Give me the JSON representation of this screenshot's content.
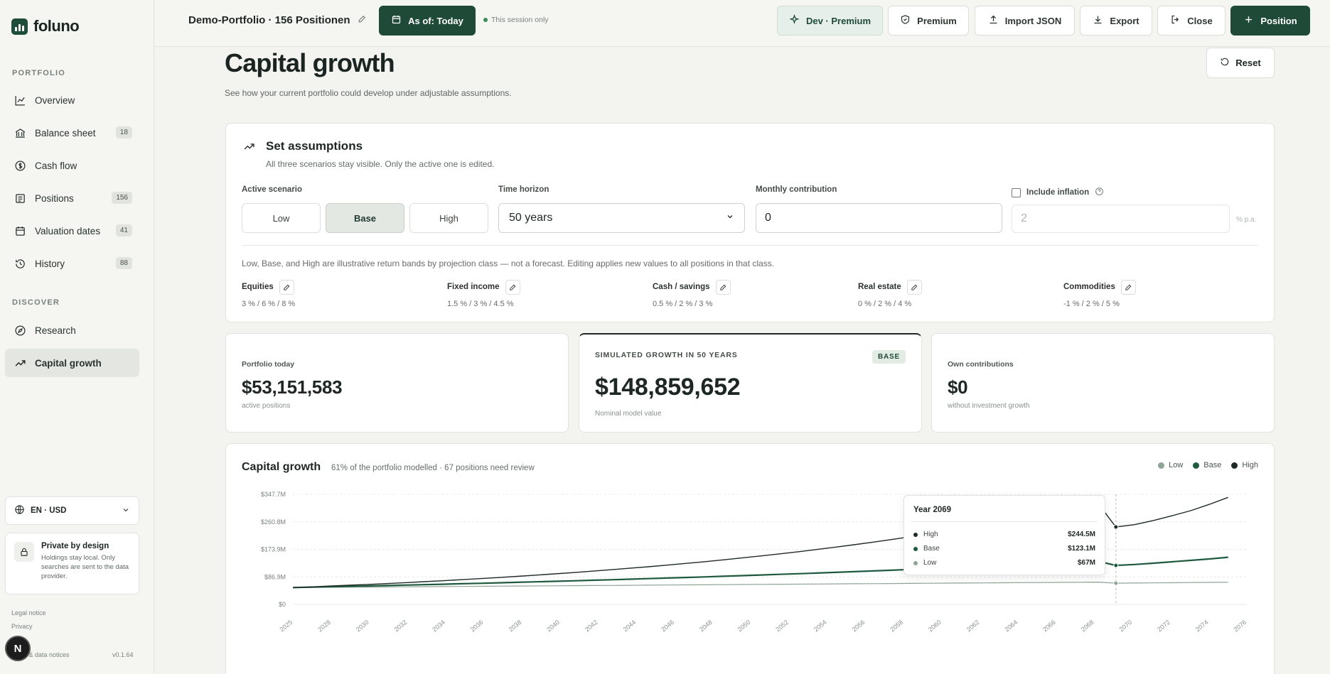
{
  "app": {
    "name": "foluno"
  },
  "sidebar": {
    "sections": [
      "PORTFOLIO",
      "DISCOVER"
    ],
    "items": [
      {
        "label": "Overview",
        "icon": "chart-line-icon",
        "badge": ""
      },
      {
        "label": "Balance sheet",
        "icon": "bank-icon",
        "badge": "18"
      },
      {
        "label": "Cash flow",
        "icon": "dollar-circle-icon",
        "badge": ""
      },
      {
        "label": "Positions",
        "icon": "list-icon",
        "badge": "156"
      },
      {
        "label": "Valuation dates",
        "icon": "calendar-icon",
        "badge": "41"
      },
      {
        "label": "History",
        "icon": "history-icon",
        "badge": "88"
      },
      {
        "label": "Research",
        "icon": "compass-icon",
        "badge": ""
      },
      {
        "label": "Capital growth",
        "icon": "trend-up-icon",
        "badge": "",
        "active": true
      }
    ],
    "locale": "EN · USD",
    "private": {
      "title": "Private by design",
      "text": "Holdings stay local. Only searches are sent to the data provider."
    },
    "footer": {
      "legal": "Legal notice",
      "privacy": "Privacy",
      "notices": "Legal & data notices",
      "version": "v0.1.64"
    },
    "avatar_initial": "N"
  },
  "topbar": {
    "title": "Demo-Portfolio · 156 Positionen",
    "as_of": "As of: Today",
    "session": "This session only",
    "dev": "Dev · Premium",
    "premium": "Premium",
    "import": "Import JSON",
    "export": "Export",
    "close": "Close",
    "position": "Position"
  },
  "page": {
    "title": "Capital growth",
    "subtitle": "See how your current portfolio could develop under adjustable assumptions.",
    "reset": "Reset"
  },
  "assumptions": {
    "title": "Set assumptions",
    "subtitle": "All three scenarios stay visible. Only the active one is edited.",
    "active_label": "Active scenario",
    "scenarios": [
      "Low",
      "Base",
      "High"
    ],
    "active": "Base",
    "horizon_label": "Time horizon",
    "horizon_value": "50 years",
    "contribution_label": "Monthly contribution",
    "contribution_value": "0",
    "inflation_label": "Include inflation",
    "inflation_value": "2",
    "inflation_unit": "% p.a.",
    "note": "Low, Base, and High are illustrative return bands by projection class — not a forecast. Editing applies new values to all positions in that class.",
    "classes": [
      {
        "name": "Equities",
        "values": "3 % / 6 % / 8 %"
      },
      {
        "name": "Fixed income",
        "values": "1.5 % / 3 % / 4.5 %"
      },
      {
        "name": "Cash / savings",
        "values": "0.5 % / 2 % / 3 %"
      },
      {
        "name": "Real estate",
        "values": "0 % / 2 % / 4 %"
      },
      {
        "name": "Commodities",
        "values": "-1 % / 2 % / 5 %"
      }
    ]
  },
  "stats": {
    "today": {
      "label": "Portfolio today",
      "value": "$53,151,583",
      "sub": "active positions"
    },
    "growth": {
      "label": "Simulated growth in 50 years",
      "value": "$148,859,652",
      "sub": "Nominal model value",
      "pill": "BASE"
    },
    "own": {
      "label": "Own contributions",
      "value": "$0",
      "sub": "without investment growth"
    }
  },
  "chart": {
    "title": "Capital growth",
    "subtitle": "61% of the portfolio modelled · 67 positions need review",
    "legend": [
      "Low",
      "Base",
      "High"
    ],
    "tooltip": {
      "title": "Year 2069",
      "rows": [
        {
          "name": "High",
          "value": "$244.5M"
        },
        {
          "name": "Base",
          "value": "$123.1M"
        },
        {
          "name": "Low",
          "value": "$67M"
        }
      ]
    }
  },
  "colors": {
    "low": "#8fa397",
    "base": "#1f5a3f",
    "high": "#1e2a24",
    "accent": "#1f4a38"
  },
  "chart_data": {
    "type": "line",
    "x": [
      2025,
      2026,
      2027,
      2028,
      2029,
      2030,
      2031,
      2032,
      2033,
      2034,
      2035,
      2036,
      2037,
      2038,
      2039,
      2040,
      2041,
      2042,
      2043,
      2044,
      2045,
      2046,
      2047,
      2048,
      2049,
      2050,
      2051,
      2052,
      2053,
      2054,
      2055,
      2056,
      2057,
      2058,
      2059,
      2060,
      2061,
      2062,
      2063,
      2064,
      2065,
      2066,
      2067,
      2068,
      2069,
      2070,
      2071,
      2072,
      2073,
      2074,
      2075
    ],
    "x_ticks": [
      "2025",
      "2028",
      "2030",
      "2032",
      "2034",
      "2036",
      "2038",
      "2040",
      "2042",
      "2044",
      "2046",
      "2048",
      "2050",
      "2052",
      "2054",
      "2056",
      "2058",
      "2060",
      "2062",
      "2064",
      "2066",
      "2068",
      "2070",
      "2072",
      "2074",
      "2076"
    ],
    "y_ticks": [
      "$0",
      "$86.9M",
      "$173.9M",
      "$260.8M",
      "$347.7M"
    ],
    "ylim": [
      0,
      347.7
    ],
    "y_unit": "M USD",
    "series": [
      {
        "name": "High",
        "values": [
          53.2,
          55.5,
          58.0,
          60.5,
          63.1,
          65.8,
          68.7,
          71.7,
          74.8,
          78.0,
          81.4,
          84.9,
          88.6,
          92.4,
          96.4,
          100.6,
          104.9,
          109.4,
          114.1,
          119.0,
          124.1,
          129.4,
          134.9,
          140.6,
          146.6,
          152.9,
          159.4,
          166.2,
          173.3,
          180.7,
          188.4,
          196.4,
          204.8,
          213.5,
          222.6,
          232.1,
          241.9,
          252.1,
          262.7,
          273.7,
          285.1,
          297.0,
          309.4,
          322.3,
          244.5,
          252.0,
          265.0,
          280.0,
          296.0,
          316.0,
          338.0
        ]
      },
      {
        "name": "Base",
        "values": [
          53.2,
          54.4,
          55.7,
          57.0,
          58.3,
          59.6,
          61.0,
          62.4,
          63.8,
          65.2,
          66.7,
          68.2,
          69.7,
          71.3,
          72.9,
          74.5,
          76.2,
          77.9,
          79.6,
          81.4,
          83.2,
          85.0,
          86.9,
          88.8,
          90.8,
          92.8,
          94.8,
          96.9,
          99.0,
          101.2,
          103.4,
          105.7,
          108.0,
          110.3,
          112.7,
          115.2,
          117.7,
          120.2,
          122.8,
          125.5,
          128.2,
          131.0,
          133.8,
          136.7,
          123.1,
          126.0,
          130.0,
          134.5,
          139.0,
          143.5,
          148.9
        ]
      },
      {
        "name": "Low",
        "values": [
          53.2,
          53.6,
          54.0,
          54.4,
          54.8,
          55.2,
          55.6,
          56.0,
          56.4,
          56.8,
          57.2,
          57.6,
          58.0,
          58.4,
          58.8,
          59.2,
          59.6,
          60.0,
          60.4,
          60.8,
          61.2,
          61.6,
          62.0,
          62.4,
          62.8,
          63.2,
          63.6,
          64.0,
          64.4,
          64.8,
          65.2,
          65.6,
          66.0,
          66.4,
          66.8,
          67.2,
          67.6,
          68.0,
          68.4,
          68.8,
          69.2,
          69.6,
          70.0,
          70.4,
          67.0,
          67.5,
          68.0,
          68.5,
          69.0,
          69.5,
          70.0
        ]
      }
    ],
    "highlight_year": 2069,
    "grid": true,
    "legend_position": "top-right"
  }
}
